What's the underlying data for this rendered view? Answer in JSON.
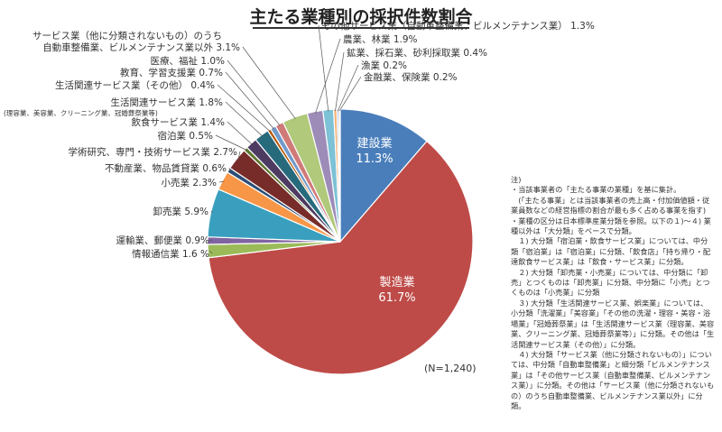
{
  "title": "主たる業種別の採択件数割合",
  "n_label": "(N=1,240)",
  "notes": "注)\n・当該事業者の「主たる事業の業種」を基に集計。\n　(「主たる事業」とは当該事業者の売上高・付加価値額・従業員数などの経営指標の割合が最も多く占める事業を指す)\n・業種の区分は日本標準産業分類を参照。以下の１)～４) 業種以外は「大分類」をベースで分類。\n　１) 大分類「宿泊業・飲食サービス業」については、中分類「宿泊業」は「宿泊業」に分類、「飲食店」「持ち帰り・配達飲食サービス業」は「飲食・サービス業」に分類。\n　２) 大分類「卸売業・小売業」については、中分類に「卸売」とつくものは「卸売業」に分類、中分類に「小売」とつくものは「小売業」に分類\n　３) 大分類「生活関連サービス業、娯楽業」については、小分類「洗濯業」「美容業」「その他の洗濯・理容・美容・浴場業」「冠婚葬祭業」は「生活関連サービス業（理容業、美容業、クリーニング業、冠婚葬祭業等）」に分類。その他は「生活関連サービス業（その他）」に分類。\n　４) 大分類「サービス業（他に分類されないもの）」については、中分類「自動車整備業」と細分類「ビルメンテナンス業」は「その他サービス業（自動車整備業、ビルメンテナンス業）」に分類。その他は「サービス業（他に分類されないもの）のうち自動車整備業、ビルメンテナンス業以外」に分類。",
  "chart_data": {
    "type": "pie",
    "title": "主たる業種別の採択件数割合",
    "slices": [
      {
        "label": "建設業",
        "value": 11.3,
        "value_label": "11.3%",
        "color": "#4a7ebb"
      },
      {
        "label": "製造業",
        "value": 61.7,
        "value_label": "61.7%",
        "color": "#be4b48"
      },
      {
        "label": "情報通信業",
        "value": 1.6,
        "value_label": "1.6 %",
        "color": "#9bbb59"
      },
      {
        "label": "運輸業、郵便業",
        "value": 0.9,
        "value_label": "0.9%",
        "color": "#8064a2"
      },
      {
        "label": "卸売業",
        "value": 5.9,
        "value_label": "5.9%",
        "color": "#3a9fbe"
      },
      {
        "label": "小売業",
        "value": 2.3,
        "value_label": "2.3%",
        "color": "#f79646"
      },
      {
        "label": "不動産業、物品賃貸業",
        "value": 0.6,
        "value_label": "0.6%",
        "color": "#2c4d75"
      },
      {
        "label": "学術研究、専門・技術サービス業",
        "value": 2.7,
        "value_label": "2.7%",
        "color": "#772c2a"
      },
      {
        "label": "宿泊業",
        "value": 0.5,
        "value_label": "0.5%",
        "color": "#5f7530"
      },
      {
        "label": "飲食サービス業",
        "value": 1.4,
        "value_label": "1.4%",
        "color": "#4d3b62"
      },
      {
        "label": "生活関連サービス業",
        "sublabel": "(理容業、美容業、クリーニング業、冠婚葬祭業等)",
        "value": 1.8,
        "value_label": "1.8%",
        "color": "#276a7c"
      },
      {
        "label": "生活関連サービス業（その他）",
        "value": 0.4,
        "value_label": "0.4%",
        "color": "#b65708"
      },
      {
        "label": "教育、学習支援業",
        "value": 0.7,
        "value_label": "0.7%",
        "color": "#729aca"
      },
      {
        "label": "医療、福祉",
        "value": 1.0,
        "value_label": "1.0%",
        "color": "#d07a78"
      },
      {
        "label": "サービス業（他に分類されないもの）のうち",
        "sublabel": "自動車整備業、ビルメンテナンス業以外",
        "value": 3.1,
        "value_label": "3.1%",
        "color": "#b0c97a"
      },
      {
        "label": "農業、林業",
        "value": 1.9,
        "value_label": "1.9%",
        "color": "#9d8cb8"
      },
      {
        "label": "その他サービス業（自動車整備業、ビルメンテナンス業）",
        "value": 1.3,
        "value_label": "1.3%",
        "color": "#7dc2d6"
      },
      {
        "label": "鉱業、採石業、砂利採取業",
        "value": 0.4,
        "value_label": "0.4%",
        "color": "#f3b47c"
      },
      {
        "label": "漁業",
        "value": 0.2,
        "value_label": "0.2%",
        "color": "#5d8ac7"
      },
      {
        "label": "金融業、保険業",
        "value": 0.2,
        "value_label": "0.2%",
        "color": "#e0e0e0"
      }
    ]
  }
}
